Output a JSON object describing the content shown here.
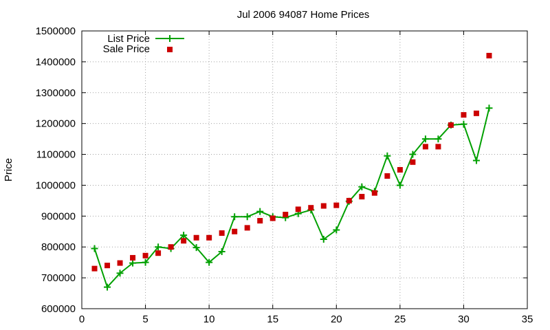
{
  "chart_data": {
    "type": "line",
    "title": "Jul 2006 94087 Home Prices",
    "xlabel": "",
    "ylabel": "Price",
    "xlim": [
      0,
      35
    ],
    "ylim": [
      600000,
      1500000
    ],
    "xticks": [
      0,
      5,
      10,
      15,
      20,
      25,
      30,
      35
    ],
    "yticks": [
      600000,
      700000,
      800000,
      900000,
      1000000,
      1100000,
      1200000,
      1300000,
      1400000,
      1500000
    ],
    "xtick_labels": [
      "0",
      "5",
      "10",
      "15",
      "20",
      "25",
      "30",
      "35"
    ],
    "ytick_labels": [
      "600000",
      "700000",
      "800000",
      "900000",
      "1000000",
      "1100000",
      "1200000",
      "1300000",
      "1400000",
      "1500000"
    ],
    "grid": true,
    "legend_position": "top-left",
    "series": [
      {
        "name": "List Price",
        "style": "linespoints",
        "color": "#00a000",
        "marker": "plus",
        "x": [
          1,
          2,
          3,
          4,
          5,
          6,
          7,
          8,
          9,
          10,
          11,
          12,
          13,
          14,
          15,
          16,
          17,
          18,
          19,
          20,
          21,
          22,
          23,
          24,
          25,
          26,
          27,
          28,
          29,
          30,
          31,
          32
        ],
        "y": [
          795000,
          670000,
          715000,
          748000,
          750000,
          800000,
          795000,
          838000,
          798000,
          750000,
          785000,
          898000,
          898000,
          915000,
          898000,
          895000,
          908000,
          920000,
          825000,
          855000,
          948000,
          995000,
          980000,
          1095000,
          1000000,
          1100000,
          1150000,
          1150000,
          1195000,
          1198000,
          1080000,
          1250000
        ]
      },
      {
        "name": "Sale Price",
        "style": "points",
        "color": "#cc0000",
        "marker": "square",
        "x": [
          1,
          2,
          3,
          4,
          5,
          6,
          7,
          8,
          9,
          10,
          11,
          12,
          13,
          14,
          15,
          16,
          17,
          18,
          19,
          20,
          21,
          22,
          23,
          24,
          25,
          26,
          27,
          28,
          29,
          30,
          31,
          32
        ],
        "y": [
          730000,
          740000,
          748000,
          765000,
          772000,
          780000,
          800000,
          820000,
          830000,
          830000,
          845000,
          850000,
          862000,
          885000,
          893000,
          905000,
          922000,
          927000,
          933000,
          935000,
          950000,
          963000,
          975000,
          1030000,
          1050000,
          1075000,
          1125000,
          1125000,
          1195000,
          1228000,
          1233000,
          1420000
        ]
      }
    ]
  }
}
